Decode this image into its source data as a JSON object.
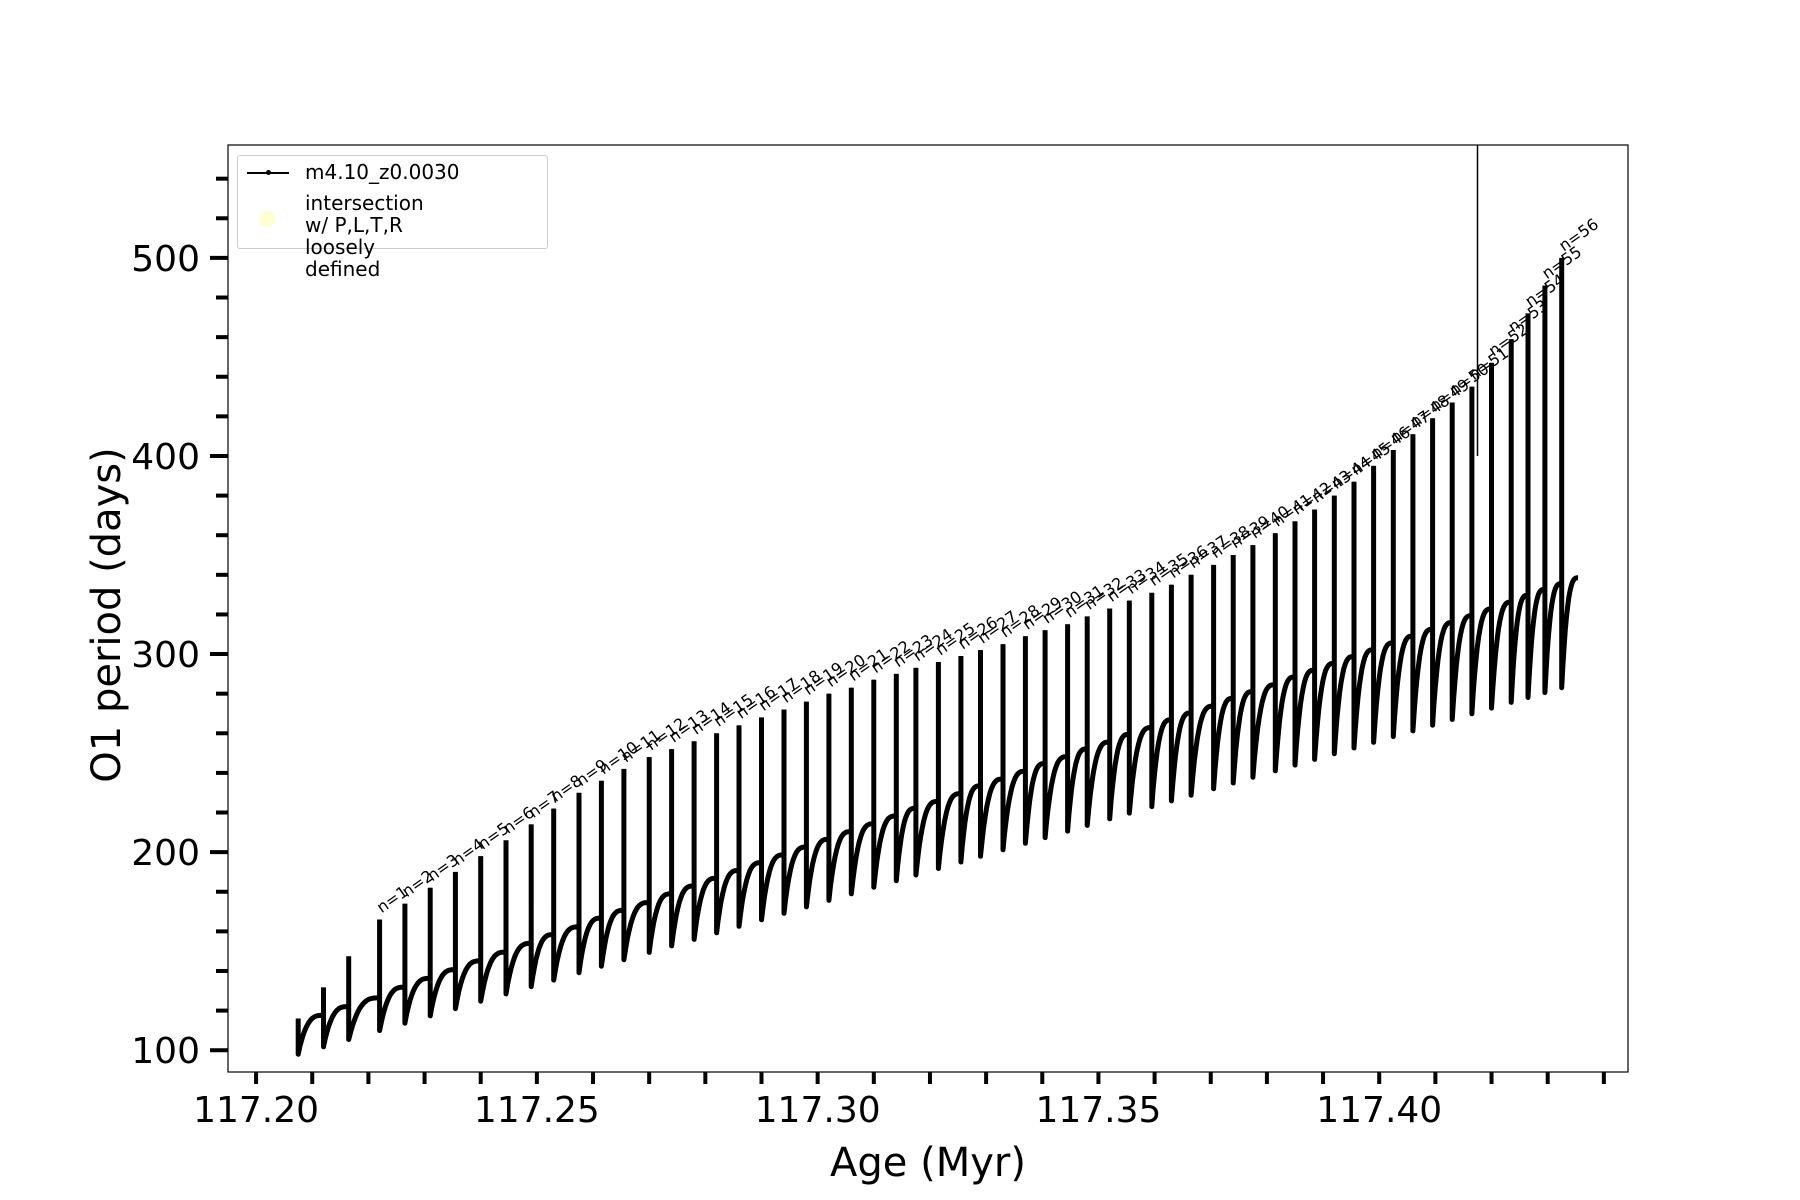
{
  "chart_data": {
    "type": "line",
    "xlabel": "Age (Myr)",
    "ylabel": "O1 period (days)",
    "xlim": [
      117.195,
      117.4443
    ],
    "ylim": [
      89,
      557
    ],
    "xticks": [
      "117.20",
      "117.25",
      "117.30",
      "117.35",
      "117.40"
    ],
    "xtick_values": [
      117.2,
      117.25,
      117.3,
      117.35,
      117.4
    ],
    "yticks": [
      "100",
      "200",
      "300",
      "400",
      "500"
    ],
    "ytick_values": [
      100,
      200,
      300,
      400,
      500
    ],
    "grid": false,
    "legend": {
      "placement": "upper-left",
      "entries": [
        {
          "label": "m4.10_z0.0030",
          "marker": "line-with-dots",
          "color": "#000000"
        },
        {
          "label": "intersection w/ P,L,T,R\nloosely defined",
          "marker": "circle",
          "color": "#ffffcc"
        }
      ]
    },
    "series": [
      {
        "name": "m4.10_z0.0030",
        "color": "#000000",
        "pattern": "repeating thermal pulse cycles; each pulse rises along a spike from the cycle minimum to the peak, then relaxes back to the sawtooth envelope",
        "start": {
          "x": 117.2075,
          "y": 115
        },
        "end": {
          "x": 117.4355,
          "y": 339
        },
        "cycle_minima_start": {
          "x": 117.2075,
          "y": 98
        },
        "cycle_minima_end": {
          "x": 117.4325,
          "y": 283
        },
        "cycle_envelope_end": {
          "x": 117.4355,
          "y": 339
        },
        "vertical_line": {
          "x": 117.4175,
          "y_from": 400,
          "y_to": 557
        }
      }
    ],
    "pulses": [
      {
        "label": "n=1",
        "x": 117.222,
        "peak": 166
      },
      {
        "label": "n=2",
        "x": 117.2265,
        "peak": 174
      },
      {
        "label": "n=3",
        "x": 117.231,
        "peak": 182
      },
      {
        "label": "n=4",
        "x": 117.2355,
        "peak": 190
      },
      {
        "label": "n=5",
        "x": 117.24,
        "peak": 198
      },
      {
        "label": "n=6",
        "x": 117.2445,
        "peak": 206
      },
      {
        "label": "n=7",
        "x": 117.249,
        "peak": 214
      },
      {
        "label": "n=8",
        "x": 117.253,
        "peak": 222
      },
      {
        "label": "n=9",
        "x": 117.2575,
        "peak": 230
      },
      {
        "label": "n=10",
        "x": 117.2615,
        "peak": 236
      },
      {
        "label": "n=11",
        "x": 117.2655,
        "peak": 242
      },
      {
        "label": "n=12",
        "x": 117.27,
        "peak": 248
      },
      {
        "label": "n=13",
        "x": 117.274,
        "peak": 252
      },
      {
        "label": "n=14",
        "x": 117.278,
        "peak": 256
      },
      {
        "label": "n=15",
        "x": 117.282,
        "peak": 260
      },
      {
        "label": "n=16",
        "x": 117.286,
        "peak": 264
      },
      {
        "label": "n=17",
        "x": 117.29,
        "peak": 268
      },
      {
        "label": "n=18",
        "x": 117.294,
        "peak": 272
      },
      {
        "label": "n=19",
        "x": 117.298,
        "peak": 276
      },
      {
        "label": "n=20",
        "x": 117.302,
        "peak": 280
      },
      {
        "label": "n=21",
        "x": 117.306,
        "peak": 283
      },
      {
        "label": "n=22",
        "x": 117.31,
        "peak": 287
      },
      {
        "label": "n=23",
        "x": 117.314,
        "peak": 290
      },
      {
        "label": "n=24",
        "x": 117.3175,
        "peak": 293
      },
      {
        "label": "n=25",
        "x": 117.3215,
        "peak": 296
      },
      {
        "label": "n=26",
        "x": 117.3255,
        "peak": 299
      },
      {
        "label": "n=27",
        "x": 117.329,
        "peak": 302
      },
      {
        "label": "n=28",
        "x": 117.333,
        "peak": 305
      },
      {
        "label": "n=29",
        "x": 117.337,
        "peak": 309
      },
      {
        "label": "n=30",
        "x": 117.3405,
        "peak": 312
      },
      {
        "label": "n=31",
        "x": 117.3445,
        "peak": 315
      },
      {
        "label": "n=32",
        "x": 117.348,
        "peak": 319
      },
      {
        "label": "n=33",
        "x": 117.352,
        "peak": 323
      },
      {
        "label": "n=34",
        "x": 117.3555,
        "peak": 327
      },
      {
        "label": "n=35",
        "x": 117.3595,
        "peak": 331
      },
      {
        "label": "n=36",
        "x": 117.363,
        "peak": 335
      },
      {
        "label": "n=37",
        "x": 117.3665,
        "peak": 340
      },
      {
        "label": "n=38",
        "x": 117.3705,
        "peak": 345
      },
      {
        "label": "n=39",
        "x": 117.374,
        "peak": 350
      },
      {
        "label": "n=40",
        "x": 117.3775,
        "peak": 355
      },
      {
        "label": "n=41",
        "x": 117.3815,
        "peak": 361
      },
      {
        "label": "n=42",
        "x": 117.385,
        "peak": 367
      },
      {
        "label": "n=43",
        "x": 117.3885,
        "peak": 373
      },
      {
        "label": "n=44",
        "x": 117.392,
        "peak": 380
      },
      {
        "label": "n=45",
        "x": 117.3955,
        "peak": 387
      },
      {
        "label": "n=46",
        "x": 117.399,
        "peak": 395
      },
      {
        "label": "n=47",
        "x": 117.4025,
        "peak": 403
      },
      {
        "label": "n=48",
        "x": 117.406,
        "peak": 411
      },
      {
        "label": "n=49",
        "x": 117.4095,
        "peak": 419
      },
      {
        "label": "n=50",
        "x": 117.413,
        "peak": 427
      },
      {
        "label": "n=51",
        "x": 117.4165,
        "peak": 435
      },
      {
        "label": "n=52",
        "x": 117.42,
        "peak": 447
      },
      {
        "label": "n=53",
        "x": 117.4235,
        "peak": 459
      },
      {
        "label": "n=54",
        "x": 117.4265,
        "peak": 472
      },
      {
        "label": "n=55",
        "x": 117.4295,
        "peak": 486
      },
      {
        "label": "n=56",
        "x": 117.4325,
        "peak": 500
      }
    ]
  }
}
